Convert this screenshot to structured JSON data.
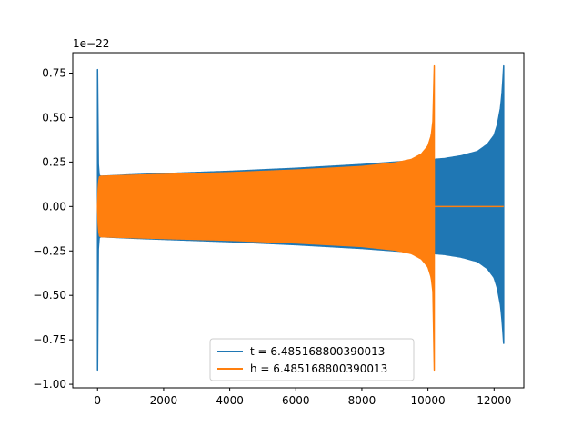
{
  "chart_data": {
    "type": "line",
    "title": "",
    "xlabel": "",
    "ylabel": "",
    "y_offset_label": "1e−22",
    "xlim": [
      -750,
      12900
    ],
    "ylim": [
      -1.02,
      0.865
    ],
    "x_ticks": [
      0,
      2000,
      4000,
      6000,
      8000,
      10000,
      12000
    ],
    "x_tick_labels": [
      "0",
      "2000",
      "4000",
      "6000",
      "8000",
      "10000",
      "12000"
    ],
    "y_ticks": [
      -1.0,
      -0.75,
      -0.5,
      -0.25,
      0.0,
      0.25,
      0.5,
      0.75
    ],
    "y_tick_labels": [
      "−1.00",
      "−0.75",
      "−0.50",
      "−0.25",
      "0.00",
      "0.25",
      "0.50",
      "0.75"
    ],
    "grid": false,
    "legend_position": "lower center",
    "series": [
      {
        "name": "t = 6.485168800390013",
        "color": "#1f77b4",
        "envelope": {
          "x": [
            0,
            20,
            50,
            100,
            1000,
            2000,
            4000,
            6000,
            8000,
            9000,
            10000,
            10500,
            11000,
            11500,
            11800,
            12000,
            12100,
            12200,
            12250,
            12290
          ],
          "upper": [
            0.77,
            0.25,
            0.175,
            0.17,
            0.178,
            0.185,
            0.198,
            0.215,
            0.236,
            0.25,
            0.262,
            0.27,
            0.285,
            0.31,
            0.35,
            0.4,
            0.46,
            0.56,
            0.66,
            0.79
          ],
          "lower": [
            -0.92,
            -0.25,
            -0.175,
            -0.17,
            -0.178,
            -0.185,
            -0.198,
            -0.215,
            -0.236,
            -0.25,
            -0.262,
            -0.27,
            -0.285,
            -0.31,
            -0.35,
            -0.4,
            -0.46,
            -0.56,
            -0.66,
            -0.77
          ]
        }
      },
      {
        "name": "h = 6.485168800390013",
        "color": "#ff7f0e",
        "envelope": {
          "x": [
            0,
            20,
            50,
            100,
            1000,
            2000,
            4000,
            6000,
            8000,
            9000,
            9500,
            9800,
            10000,
            10100,
            10150,
            10190
          ],
          "upper": [
            0.0,
            0.1,
            0.165,
            0.17,
            0.175,
            0.18,
            0.19,
            0.205,
            0.225,
            0.245,
            0.265,
            0.295,
            0.34,
            0.4,
            0.48,
            0.79
          ],
          "lower": [
            0.0,
            -0.1,
            -0.165,
            -0.17,
            -0.175,
            -0.18,
            -0.19,
            -0.205,
            -0.225,
            -0.245,
            -0.265,
            -0.295,
            -0.34,
            -0.4,
            -0.48,
            -0.92
          ]
        },
        "tail_x": [
          10190,
          12290
        ],
        "tail_y": [
          0.0,
          0.0
        ]
      }
    ]
  }
}
